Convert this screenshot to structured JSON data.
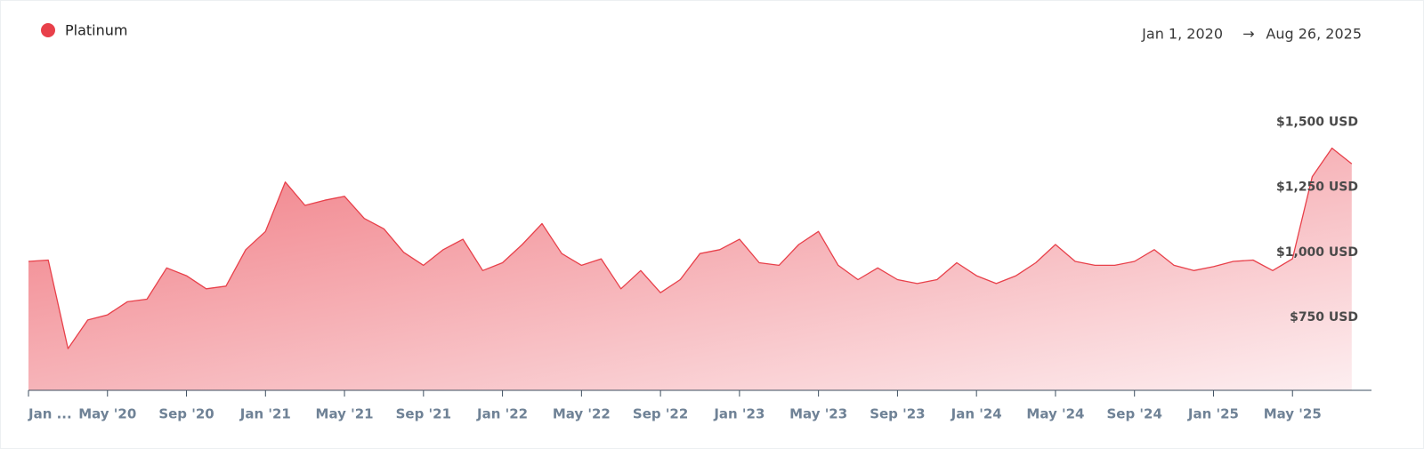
{
  "chart_data": {
    "type": "area",
    "date_range_start": "Jan 1, 2020",
    "date_range_separator": "→",
    "date_range_end": "Aug 26, 2025",
    "x": [
      "2020-01",
      "2020-02",
      "2020-03",
      "2020-04",
      "2020-05",
      "2020-06",
      "2020-07",
      "2020-08",
      "2020-09",
      "2020-10",
      "2020-11",
      "2020-12",
      "2021-01",
      "2021-02",
      "2021-03",
      "2021-04",
      "2021-05",
      "2021-06",
      "2021-07",
      "2021-08",
      "2021-09",
      "2021-10",
      "2021-11",
      "2021-12",
      "2022-01",
      "2022-02",
      "2022-03",
      "2022-04",
      "2022-05",
      "2022-06",
      "2022-07",
      "2022-08",
      "2022-09",
      "2022-10",
      "2022-11",
      "2022-12",
      "2023-01",
      "2023-02",
      "2023-03",
      "2023-04",
      "2023-05",
      "2023-06",
      "2023-07",
      "2023-08",
      "2023-09",
      "2023-10",
      "2023-11",
      "2023-12",
      "2024-01",
      "2024-02",
      "2024-03",
      "2024-04",
      "2024-05",
      "2024-06",
      "2024-07",
      "2024-08",
      "2024-09",
      "2024-10",
      "2024-11",
      "2024-12",
      "2025-01",
      "2025-02",
      "2025-03",
      "2025-04",
      "2025-05",
      "2025-06",
      "2025-07",
      "2025-08"
    ],
    "series": [
      {
        "name": "Platinum",
        "color": "#e8404a",
        "values": [
          965,
          970,
          630,
          740,
          760,
          810,
          820,
          940,
          910,
          860,
          870,
          1010,
          1080,
          1270,
          1180,
          1200,
          1215,
          1130,
          1090,
          1000,
          950,
          1010,
          1050,
          930,
          960,
          1030,
          1110,
          995,
          950,
          975,
          860,
          930,
          845,
          895,
          995,
          1010,
          1050,
          960,
          950,
          1030,
          1080,
          950,
          895,
          940,
          895,
          880,
          895,
          960,
          910,
          880,
          910,
          960,
          1030,
          965,
          950,
          950,
          965,
          1010,
          950,
          930,
          945,
          965,
          970,
          930,
          975,
          1290,
          1400,
          1340
        ]
      }
    ],
    "xlim": [
      "2020-01",
      "2025-09"
    ],
    "xticks": [
      {
        "value": "2020-01",
        "label": "Jan ..."
      },
      {
        "value": "2020-05",
        "label": "May '20"
      },
      {
        "value": "2020-09",
        "label": "Sep '20"
      },
      {
        "value": "2021-01",
        "label": "Jan '21"
      },
      {
        "value": "2021-05",
        "label": "May '21"
      },
      {
        "value": "2021-09",
        "label": "Sep '21"
      },
      {
        "value": "2022-01",
        "label": "Jan '22"
      },
      {
        "value": "2022-05",
        "label": "May '22"
      },
      {
        "value": "2022-09",
        "label": "Sep '22"
      },
      {
        "value": "2023-01",
        "label": "Jan '23"
      },
      {
        "value": "2023-05",
        "label": "May '23"
      },
      {
        "value": "2023-09",
        "label": "Sep '23"
      },
      {
        "value": "2024-01",
        "label": "Jan '24"
      },
      {
        "value": "2024-05",
        "label": "May '24"
      },
      {
        "value": "2024-09",
        "label": "Sep '24"
      },
      {
        "value": "2025-01",
        "label": "Jan '25"
      },
      {
        "value": "2025-05",
        "label": "May '25"
      }
    ],
    "ylim": [
      470,
      1600
    ],
    "yticks": [
      {
        "value": 750,
        "label": "$750 USD"
      },
      {
        "value": 1000,
        "label": "$1,000 USD"
      },
      {
        "value": 1250,
        "label": "$1,250 USD"
      },
      {
        "value": 1500,
        "label": "$1,500 USD"
      }
    ],
    "legend": "top-left"
  }
}
